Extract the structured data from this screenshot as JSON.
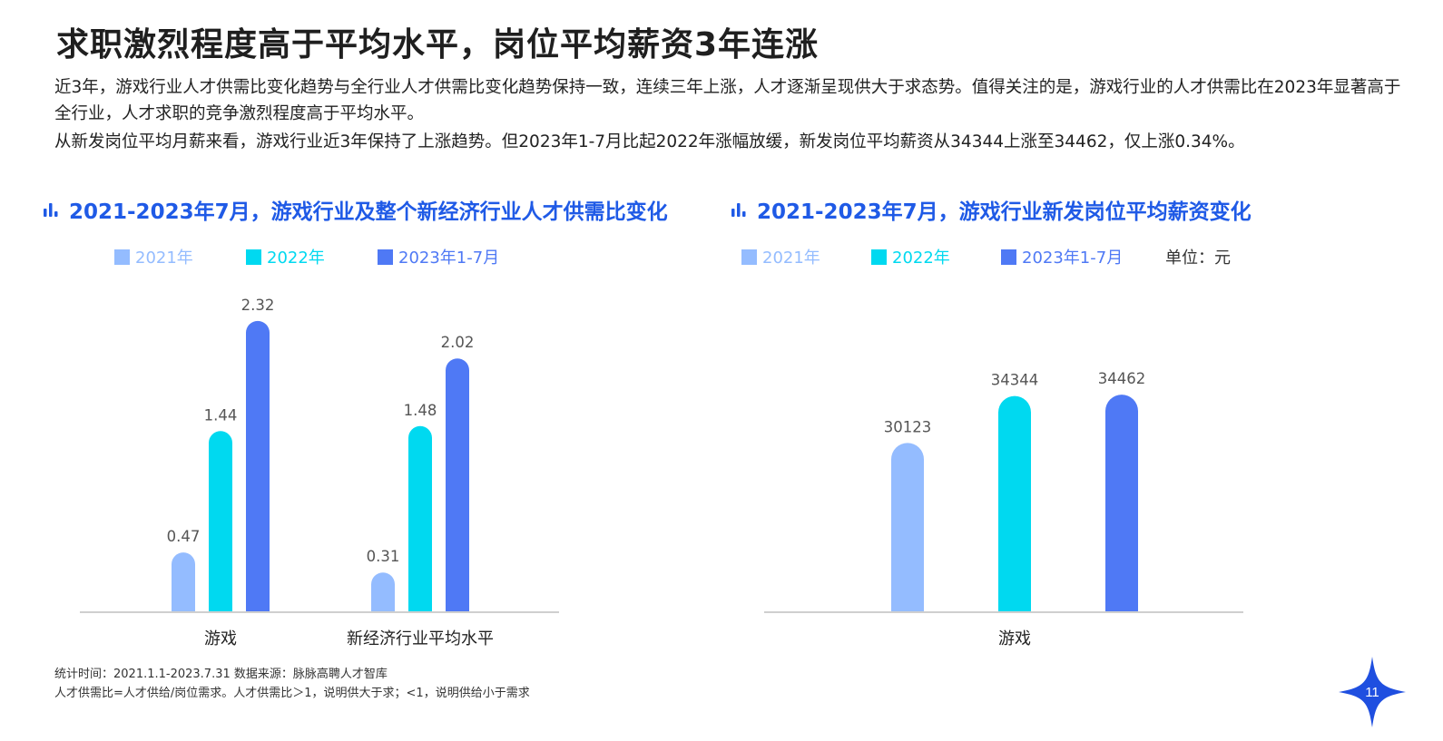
{
  "title": "求职激烈程度高于平均水平，岗位平均薪资3年连涨",
  "paragraph1": "近3年，游戏行业人才供需比变化趋势与全行业人才供需比变化趋势保持一致，连续三年上涨，人才逐渐呈现供大于求态势。值得关注的是，游戏行业的人才供需比在2023年显著高于全行业，人才求职的竞争激烈程度高于平均水平。",
  "paragraph2": "从新发岗位平均月薪来看，游戏行业近3年保持了上涨趋势。但2023年1-7月比起2022年涨幅放缓，新发岗位平均薪资从34344上涨至34462，仅上涨0.34%。",
  "footnote1": "统计时间：2021.1.1-2023.7.31     数据来源：脉脉高聘人才智库",
  "footnote2": "人才供需比=人才供给/岗位需求。人才供需比＞1，说明供大于求；<1，说明供给小于需求",
  "page_number": "11",
  "colors": {
    "s2021": "#94bcff",
    "s2022": "#00d9f0",
    "s2023": "#4f79f5",
    "accent": "#1f5ae6"
  },
  "chart_data": [
    {
      "type": "bar",
      "title": "2021-2023年7月，游戏行业及整个新经济行业人才供需比变化",
      "categories": [
        "游戏",
        "新经济行业平均水平"
      ],
      "series": [
        {
          "name": "2021年",
          "values": [
            0.47,
            0.31
          ]
        },
        {
          "name": "2022年",
          "values": [
            1.44,
            1.48
          ]
        },
        {
          "name": "2023年1-7月",
          "values": [
            2.32,
            2.02
          ]
        }
      ],
      "ylim": [
        0,
        2.5
      ],
      "grid": false,
      "legend": "top-left"
    },
    {
      "type": "bar",
      "title": "2021-2023年7月，游戏行业新发岗位平均薪资变化",
      "unit_label": "单位：元",
      "categories": [
        "游戏"
      ],
      "series": [
        {
          "name": "2021年",
          "values": [
            30123
          ]
        },
        {
          "name": "2022年",
          "values": [
            34344
          ]
        },
        {
          "name": "2023年1-7月",
          "values": [
            34462
          ]
        }
      ],
      "ylim": [
        15000,
        37000
      ],
      "grid": false,
      "legend": "top-left"
    }
  ]
}
